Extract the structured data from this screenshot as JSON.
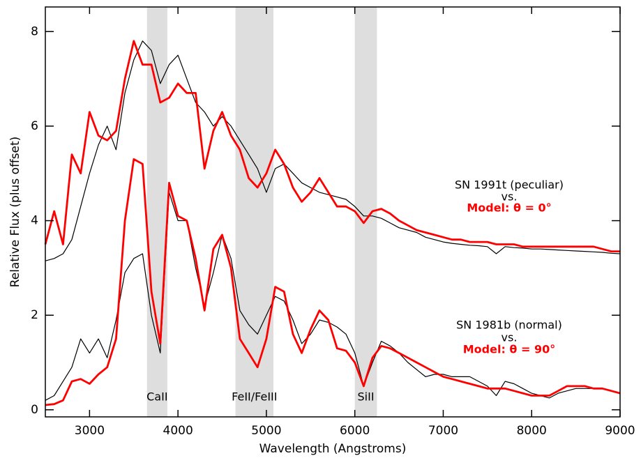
{
  "chart_data": {
    "type": "line",
    "xlabel": "Wavelength (Angstroms)",
    "ylabel": "Relative Flux (plus offset)",
    "xlim": [
      2500,
      9000
    ],
    "ylim": [
      -0.15,
      8.52
    ],
    "xticks": [
      3000,
      4000,
      5000,
      6000,
      7000,
      8000,
      9000
    ],
    "yticks": [
      0,
      2,
      4,
      6,
      8
    ],
    "bands": [
      {
        "label": "CaII",
        "range": [
          3650,
          3880
        ]
      },
      {
        "label": "FeII/FeIII",
        "range": [
          4650,
          5080
        ]
      },
      {
        "label": "SiII",
        "range": [
          6000,
          6250
        ]
      }
    ],
    "band_color": "#dedede",
    "annotations": [
      "vs.",
      "vs."
    ],
    "x": [
      2500,
      2600,
      2700,
      2800,
      2900,
      3000,
      3100,
      3200,
      3300,
      3400,
      3500,
      3600,
      3700,
      3800,
      3900,
      4000,
      4100,
      4200,
      4300,
      4400,
      4500,
      4600,
      4700,
      4800,
      4900,
      5000,
      5100,
      5200,
      5300,
      5400,
      5500,
      5600,
      5700,
      5800,
      5900,
      6000,
      6100,
      6200,
      6300,
      6400,
      6500,
      6600,
      6700,
      6800,
      6900,
      7000,
      7100,
      7200,
      7300,
      7400,
      7500,
      7600,
      7700,
      7800,
      7900,
      8000,
      8100,
      8200,
      8300,
      8400,
      8500,
      8600,
      8700,
      8800,
      8900,
      9000
    ],
    "series": [
      {
        "name": "SN 1991t (peculiar)",
        "color": "#000000",
        "values": [
          3.15,
          3.2,
          3.3,
          3.6,
          4.3,
          5.0,
          5.6,
          6.0,
          5.5,
          6.7,
          7.4,
          7.8,
          7.6,
          6.9,
          7.3,
          7.5,
          7.0,
          6.5,
          6.3,
          6.0,
          6.2,
          6.0,
          5.7,
          5.4,
          5.1,
          4.6,
          5.1,
          5.2,
          5.0,
          4.8,
          4.7,
          4.6,
          4.55,
          4.5,
          4.45,
          4.3,
          4.1,
          4.1,
          4.05,
          3.95,
          3.85,
          3.8,
          3.75,
          3.65,
          3.6,
          3.55,
          3.52,
          3.5,
          3.48,
          3.47,
          3.45,
          3.3,
          3.45,
          3.43,
          3.42,
          3.4,
          3.4,
          3.39,
          3.38,
          3.37,
          3.36,
          3.35,
          3.34,
          3.33,
          3.31,
          3.3
        ]
      },
      {
        "name": "Model: θ = 0°",
        "color": "#ff0000",
        "values": [
          3.5,
          4.2,
          3.5,
          5.4,
          5.0,
          6.3,
          5.8,
          5.7,
          5.9,
          7.0,
          7.8,
          7.3,
          7.3,
          6.5,
          6.6,
          6.9,
          6.7,
          6.7,
          5.1,
          5.9,
          6.3,
          5.8,
          5.5,
          4.9,
          4.7,
          5.0,
          5.5,
          5.2,
          4.7,
          4.4,
          4.6,
          4.9,
          4.6,
          4.3,
          4.3,
          4.2,
          3.95,
          4.2,
          4.25,
          4.15,
          4.0,
          3.9,
          3.8,
          3.75,
          3.7,
          3.65,
          3.6,
          3.6,
          3.55,
          3.55,
          3.55,
          3.5,
          3.5,
          3.5,
          3.45,
          3.45,
          3.45,
          3.45,
          3.45,
          3.45,
          3.45,
          3.45,
          3.45,
          3.4,
          3.35,
          3.35
        ]
      },
      {
        "name": "SN 1981b (normal)",
        "color": "#000000",
        "values": [
          0.2,
          0.3,
          0.6,
          0.9,
          1.5,
          1.2,
          1.5,
          1.1,
          1.9,
          2.9,
          3.2,
          3.3,
          2.0,
          1.2,
          4.6,
          4.0,
          4.0,
          3.0,
          2.2,
          2.9,
          3.7,
          3.2,
          2.1,
          1.8,
          1.6,
          2.0,
          2.4,
          2.3,
          1.9,
          1.4,
          1.6,
          1.9,
          1.85,
          1.75,
          1.6,
          1.2,
          0.5,
          1.0,
          1.45,
          1.35,
          1.2,
          1.0,
          0.85,
          0.7,
          0.75,
          0.75,
          0.7,
          0.7,
          0.7,
          0.6,
          0.5,
          0.3,
          0.6,
          0.55,
          0.45,
          0.35,
          0.3,
          0.25,
          0.35,
          0.4,
          0.45,
          0.45,
          0.45,
          0.45,
          0.4,
          0.35
        ]
      },
      {
        "name": "Model: θ = 90°",
        "color": "#ff0000",
        "values": [
          0.1,
          0.12,
          0.2,
          0.6,
          0.65,
          0.55,
          0.75,
          0.9,
          1.5,
          4.0,
          5.3,
          5.2,
          2.5,
          1.4,
          4.8,
          4.1,
          4.0,
          3.2,
          2.1,
          3.4,
          3.7,
          3.0,
          1.5,
          1.2,
          0.9,
          1.5,
          2.6,
          2.5,
          1.6,
          1.2,
          1.7,
          2.1,
          1.9,
          1.3,
          1.25,
          1.0,
          0.5,
          1.1,
          1.35,
          1.3,
          1.2,
          1.1,
          1.0,
          0.9,
          0.8,
          0.7,
          0.65,
          0.6,
          0.55,
          0.5,
          0.45,
          0.45,
          0.45,
          0.4,
          0.35,
          0.3,
          0.3,
          0.3,
          0.4,
          0.5,
          0.5,
          0.5,
          0.45,
          0.45,
          0.4,
          0.35
        ]
      }
    ]
  }
}
